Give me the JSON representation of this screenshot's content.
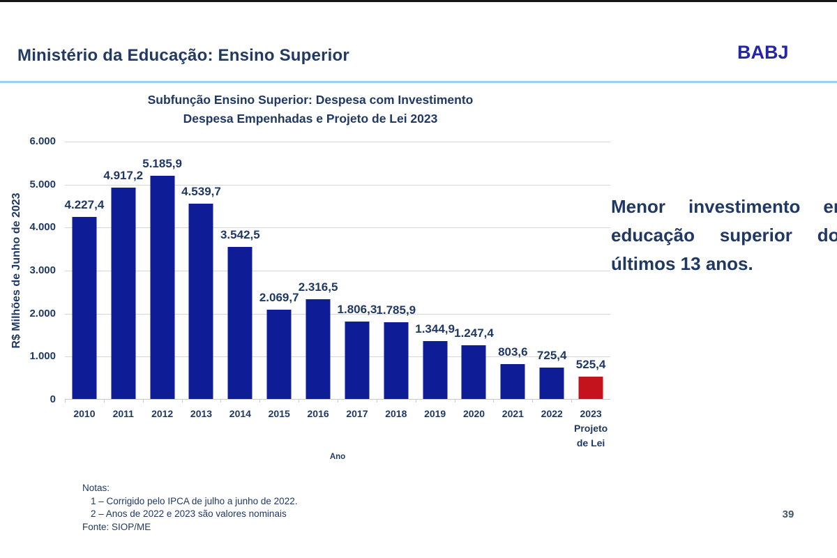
{
  "header": {
    "title": "Ministério da Educação: Ensino Superior",
    "logo": "BABJ"
  },
  "chart_data": {
    "type": "bar",
    "title_line1": "Subfunção Ensino Superior: Despesa com Investimento",
    "title_line2": "Despesa Empenhadas e Projeto de Lei 2023",
    "ylabel": "R$ Milhões de Junho de 2023",
    "xlabel": "Ano",
    "ylim": [
      0,
      6000
    ],
    "ytick_labels": [
      "6.000",
      "5.000",
      "4.000",
      "3.000",
      "2.000",
      "1.000",
      "0"
    ],
    "categories": [
      "2010",
      "2011",
      "2012",
      "2013",
      "2014",
      "2015",
      "2016",
      "2017",
      "2018",
      "2019",
      "2020",
      "2021",
      "2022",
      "2023"
    ],
    "last_category_sublabel": [
      "Projeto",
      "de Lei"
    ],
    "values": [
      4227.4,
      4917.2,
      5185.9,
      4539.7,
      3542.5,
      2069.7,
      2316.5,
      1806.3,
      1785.9,
      1344.9,
      1247.4,
      803.6,
      725.4,
      525.4
    ],
    "value_labels": [
      "4.227,4",
      "4.917,2",
      "5.185,9",
      "4.539,7",
      "3.542,5",
      "2.069,7",
      "2.316,5",
      "1.806,3",
      "1.785,9",
      "1.344,9",
      "1.247,4",
      "803,6",
      "725,4",
      "525,4"
    ],
    "bar_color": "#0E1D96",
    "highlight_color": "#C5131E",
    "highlight_index": 13,
    "grid": true,
    "legend": false
  },
  "annotation": {
    "lines": [
      "Menor investimento em",
      "educação superior dos",
      "últimos 13 anos."
    ]
  },
  "notes": {
    "heading": "Notas:",
    "items": [
      "1 – Corrigido pelo IPCA de julho a junho de 2022.",
      "2 – Anos de 2022 e 2023 são valores nominais"
    ],
    "source": "Fonte: SIOP/ME"
  },
  "page_number": "39"
}
